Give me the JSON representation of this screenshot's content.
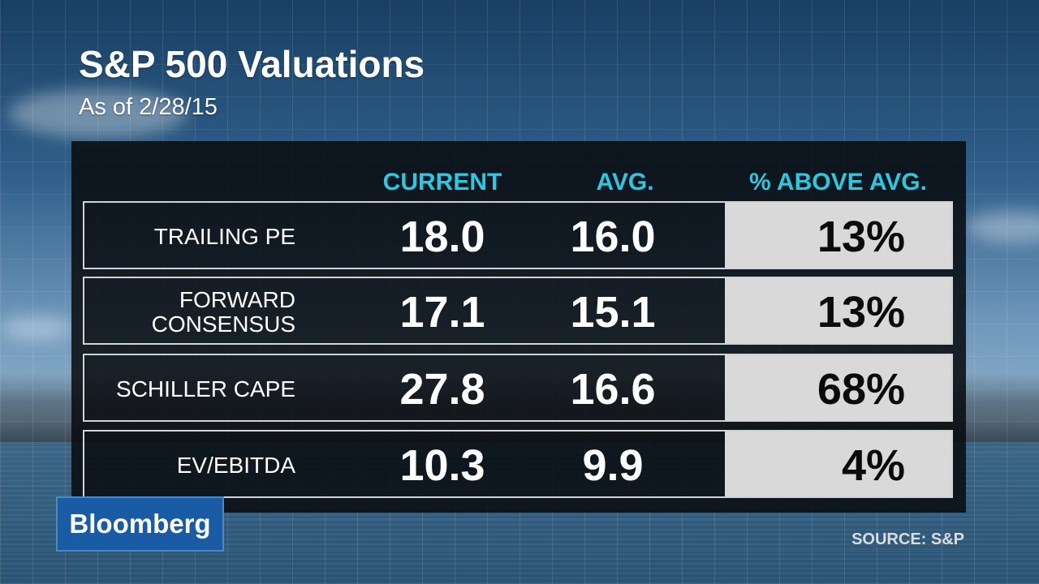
{
  "title": "S&P 500 Valuations",
  "subtitle": "As of 2/28/15",
  "chart_data": {
    "type": "table",
    "columns": [
      "CURRENT",
      "AVG.",
      "% ABOVE AVG."
    ],
    "rows": [
      {
        "label": "TRAILING PE",
        "current": "18.0",
        "avg": "16.0",
        "pct": "13%"
      },
      {
        "label": "FORWARD CONSENSUS",
        "current": "17.1",
        "avg": "15.1",
        "pct": "13%"
      },
      {
        "label": "SCHILLER CAPE",
        "current": "27.8",
        "avg": "16.6",
        "pct": "68%"
      },
      {
        "label": "EV/EBITDA",
        "current": "10.3",
        "avg": "9.9",
        "pct": "4%"
      }
    ]
  },
  "brand": {
    "logo_text": "Bloomberg",
    "color": "#1a5ba6"
  },
  "source": "SOURCE: S&P",
  "colors": {
    "header": "#2fc7dd",
    "panel": "#0a0c10",
    "pct_box": "#d9d9d9"
  }
}
